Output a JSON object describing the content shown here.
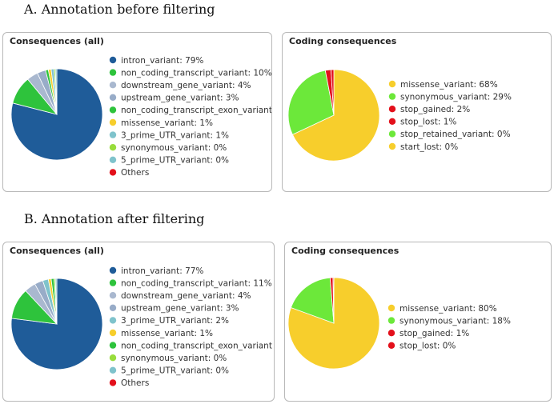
{
  "sections": [
    {
      "label": "A.   Annotation before filtering"
    },
    {
      "label": "B.   Annotation after filtering"
    }
  ],
  "chart_data": [
    {
      "type": "pie",
      "title": "Consequences (all)",
      "legend_position": "right",
      "slices": [
        {
          "label": "intron_variant: 79%",
          "value": 79,
          "color": "#1f5c99"
        },
        {
          "label": "non_coding_transcript_variant: 10%",
          "value": 10,
          "color": "#2ec33c"
        },
        {
          "label": "downstream_gene_variant: 4%",
          "value": 4,
          "color": "#a9b8cf"
        },
        {
          "label": "upstream_gene_variant: 3%",
          "value": 3,
          "color": "#98acc8"
        },
        {
          "label": "non_coding_transcript_exon_variant",
          "value": 1,
          "color": "#2ec33c"
        },
        {
          "label": "missense_variant: 1%",
          "value": 1,
          "color": "#f7ce2c"
        },
        {
          "label": "3_prime_UTR_variant: 1%",
          "value": 1,
          "color": "#7fc3cc"
        },
        {
          "label": "synonymous_variant: 0%",
          "value": 0.5,
          "color": "#98dd3c"
        },
        {
          "label": "5_prime_UTR_variant: 0%",
          "value": 0.5,
          "color": "#7fc3cc"
        },
        {
          "label": "Others",
          "value": 0,
          "color": "#e3101b"
        }
      ]
    },
    {
      "type": "pie",
      "title": "Coding consequences",
      "legend_position": "right",
      "slices": [
        {
          "label": "missense_variant: 68%",
          "value": 68,
          "color": "#f7ce2c"
        },
        {
          "label": "synonymous_variant: 29%",
          "value": 29,
          "color": "#6ce83a"
        },
        {
          "label": "stop_gained: 2%",
          "value": 2,
          "color": "#e3101b"
        },
        {
          "label": "stop_lost: 1%",
          "value": 1,
          "color": "#e3101b"
        },
        {
          "label": "stop_retained_variant: 0%",
          "value": 0,
          "color": "#6ce83a"
        },
        {
          "label": "start_lost: 0%",
          "value": 0,
          "color": "#f7ce2c"
        }
      ]
    },
    {
      "type": "pie",
      "title": "Consequences (all)",
      "legend_position": "right",
      "slices": [
        {
          "label": "intron_variant: 77%",
          "value": 77,
          "color": "#1f5c99"
        },
        {
          "label": "non_coding_transcript_variant: 11%",
          "value": 11,
          "color": "#2ec33c"
        },
        {
          "label": "downstream_gene_variant: 4%",
          "value": 4,
          "color": "#a9b8cf"
        },
        {
          "label": "upstream_gene_variant: 3%",
          "value": 3,
          "color": "#98acc8"
        },
        {
          "label": "3_prime_UTR_variant: 2%",
          "value": 2,
          "color": "#7fc3cc"
        },
        {
          "label": "missense_variant: 1%",
          "value": 1,
          "color": "#f7ce2c"
        },
        {
          "label": "non_coding_transcript_exon_variant",
          "value": 1,
          "color": "#2ec33c"
        },
        {
          "label": "synonymous_variant: 0%",
          "value": 0.5,
          "color": "#98dd3c"
        },
        {
          "label": "5_prime_UTR_variant: 0%",
          "value": 0.5,
          "color": "#7fc3cc"
        },
        {
          "label": "Others",
          "value": 0,
          "color": "#e3101b"
        }
      ]
    },
    {
      "type": "pie",
      "title": "Coding consequences",
      "legend_position": "right",
      "slices": [
        {
          "label": "missense_variant: 80%",
          "value": 80,
          "color": "#f7ce2c"
        },
        {
          "label": "synonymous_variant: 18%",
          "value": 18,
          "color": "#6ce83a"
        },
        {
          "label": "stop_gained: 1%",
          "value": 1,
          "color": "#e3101b"
        },
        {
          "label": "stop_lost: 0%",
          "value": 0.3,
          "color": "#e3101b"
        }
      ]
    }
  ]
}
